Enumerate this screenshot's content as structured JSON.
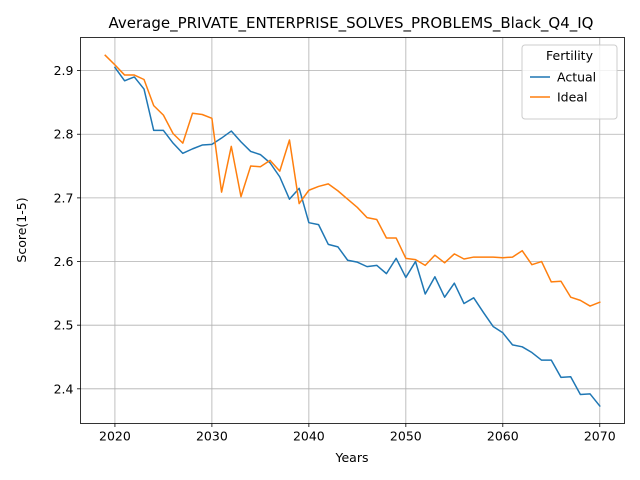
{
  "chart_data": {
    "type": "line",
    "title": "Average_PRIVATE_ENTERPRISE_SOLVES_PROBLEMS_Black_Q4_IQ",
    "xlabel": "Years",
    "ylabel": "Score(1-5)",
    "xlim": [
      2016.45,
      2072.55
    ],
    "ylim": [
      2.3455,
      2.952
    ],
    "xticks": [
      2020,
      2030,
      2040,
      2050,
      2060,
      2070
    ],
    "yticks": [
      2.4,
      2.5,
      2.6,
      2.7,
      2.8,
      2.9
    ],
    "grid": true,
    "legend": {
      "title": "Fertility",
      "placement": "top-right"
    },
    "x": [
      2019,
      2020,
      2021,
      2022,
      2023,
      2024,
      2025,
      2026,
      2027,
      2028,
      2029,
      2030,
      2031,
      2032,
      2033,
      2034,
      2035,
      2036,
      2037,
      2038,
      2039,
      2040,
      2041,
      2042,
      2043,
      2044,
      2045,
      2046,
      2047,
      2048,
      2049,
      2050,
      2051,
      2052,
      2053,
      2054,
      2055,
      2056,
      2057,
      2058,
      2059,
      2060,
      2061,
      2062,
      2063,
      2064,
      2065,
      2066,
      2067,
      2068,
      2069,
      2070
    ],
    "series": [
      {
        "name": "Actual",
        "color": "#1f77b4",
        "x": [
          2020,
          2021,
          2022,
          2023,
          2024,
          2025,
          2026,
          2027,
          2028,
          2029,
          2030,
          2031,
          2032,
          2033,
          2034,
          2035,
          2036,
          2037,
          2038,
          2039,
          2040,
          2041,
          2042,
          2043,
          2044,
          2045,
          2046,
          2047,
          2048,
          2049,
          2050,
          2051,
          2052,
          2053,
          2054,
          2055,
          2056,
          2057,
          2058,
          2059,
          2060,
          2061,
          2062,
          2063,
          2064,
          2065,
          2066,
          2067,
          2068,
          2069,
          2070
        ],
        "values": [
          2.905,
          2.884,
          2.89,
          2.871,
          2.806,
          2.806,
          2.786,
          2.77,
          2.777,
          2.783,
          2.784,
          2.794,
          2.805,
          2.788,
          2.773,
          2.768,
          2.755,
          2.733,
          2.698,
          2.715,
          2.661,
          2.658,
          2.627,
          2.623,
          2.602,
          2.599,
          2.592,
          2.594,
          2.581,
          2.605,
          2.575,
          2.6,
          2.549,
          2.576,
          2.544,
          2.566,
          2.534,
          2.543,
          2.52,
          2.498,
          2.488,
          2.469,
          2.466,
          2.457,
          2.445,
          2.445,
          2.418,
          2.419,
          2.391,
          2.392,
          2.373
        ]
      },
      {
        "name": "Ideal",
        "color": "#ff7f0e",
        "x": [
          2019,
          2020,
          2021,
          2022,
          2023,
          2024,
          2025,
          2026,
          2027,
          2028,
          2029,
          2030,
          2031,
          2032,
          2033,
          2034,
          2035,
          2036,
          2037,
          2038,
          2039,
          2040,
          2041,
          2042,
          2043,
          2044,
          2045,
          2046,
          2047,
          2048,
          2049,
          2050,
          2051,
          2052,
          2053,
          2054,
          2055,
          2056,
          2057,
          2058,
          2059,
          2060,
          2061,
          2062,
          2063,
          2064,
          2065,
          2066,
          2067,
          2068,
          2069,
          2070
        ],
        "values": [
          2.924,
          2.909,
          2.893,
          2.893,
          2.886,
          2.845,
          2.83,
          2.801,
          2.786,
          2.833,
          2.831,
          2.825,
          2.709,
          2.781,
          2.702,
          2.75,
          2.749,
          2.759,
          2.742,
          2.791,
          2.691,
          2.712,
          2.718,
          2.722,
          2.711,
          2.698,
          2.685,
          2.669,
          2.666,
          2.637,
          2.637,
          2.605,
          2.603,
          2.594,
          2.61,
          2.598,
          2.612,
          2.604,
          2.607,
          2.607,
          2.607,
          2.606,
          2.607,
          2.617,
          2.595,
          2.6,
          2.568,
          2.569,
          2.544,
          2.539,
          2.53,
          2.536
        ]
      }
    ]
  }
}
